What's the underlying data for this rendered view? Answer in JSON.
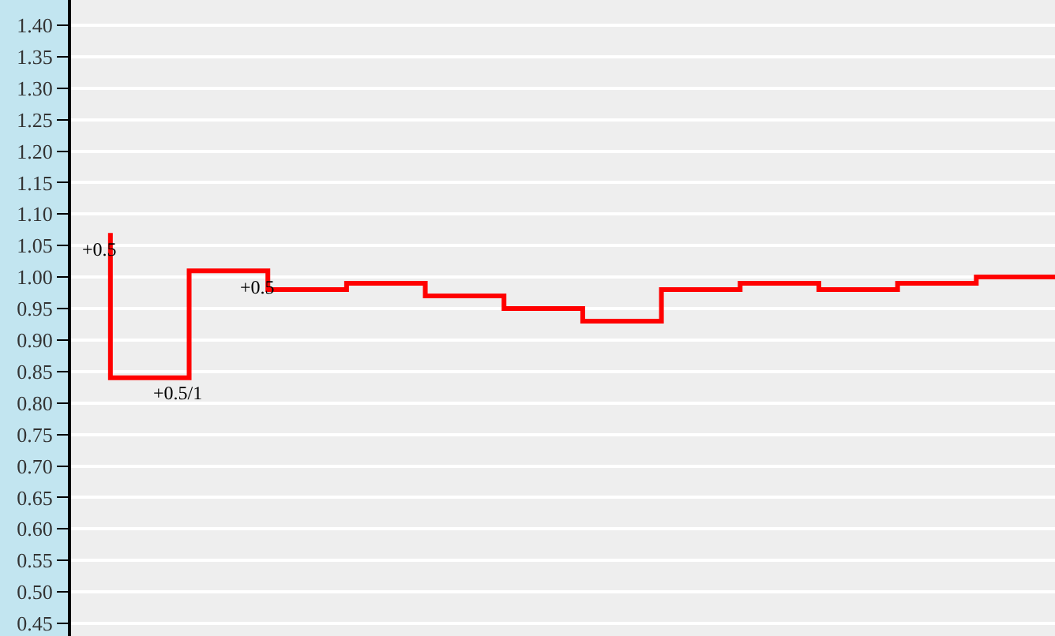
{
  "chart_data": {
    "type": "step",
    "categories": [
      null,
      null,
      null,
      null,
      null,
      null,
      null,
      null,
      null,
      null,
      null,
      null,
      null
    ],
    "series": [
      {
        "color": "#ff0000",
        "values": [
          1.07,
          0.84,
          1.01,
          0.98,
          0.99,
          0.97,
          0.95,
          0.93,
          0.98,
          0.99,
          0.98,
          0.99,
          1.0
        ]
      }
    ],
    "ylim": [
      0.43,
      1.44
    ],
    "yticks": [
      0.45,
      {
        "value": 0.5,
        "label": "0.50"
      },
      0.55,
      {
        "value": 0.6,
        "label": "0.60"
      },
      0.65,
      {
        "value": 0.7,
        "label": "0.70"
      },
      0.75,
      {
        "value": 0.8,
        "label": "0.80"
      },
      0.85,
      {
        "value": 0.9,
        "label": "0.90"
      },
      0.95,
      {
        "value": 1.0,
        "label": "1.00"
      },
      1.05,
      {
        "value": 1.1,
        "label": "1.10"
      },
      1.15,
      {
        "value": 1.2,
        "label": "1.20"
      },
      1.25,
      {
        "value": 1.3,
        "label": "1.30"
      },
      1.35,
      {
        "value": 1.4,
        "label": "1.40"
      }
    ],
    "grid": "y",
    "tick_labels": "y",
    "annotations": [
      "+0.5",
      "+0.5/1",
      "+0.5"
    ]
  }
}
